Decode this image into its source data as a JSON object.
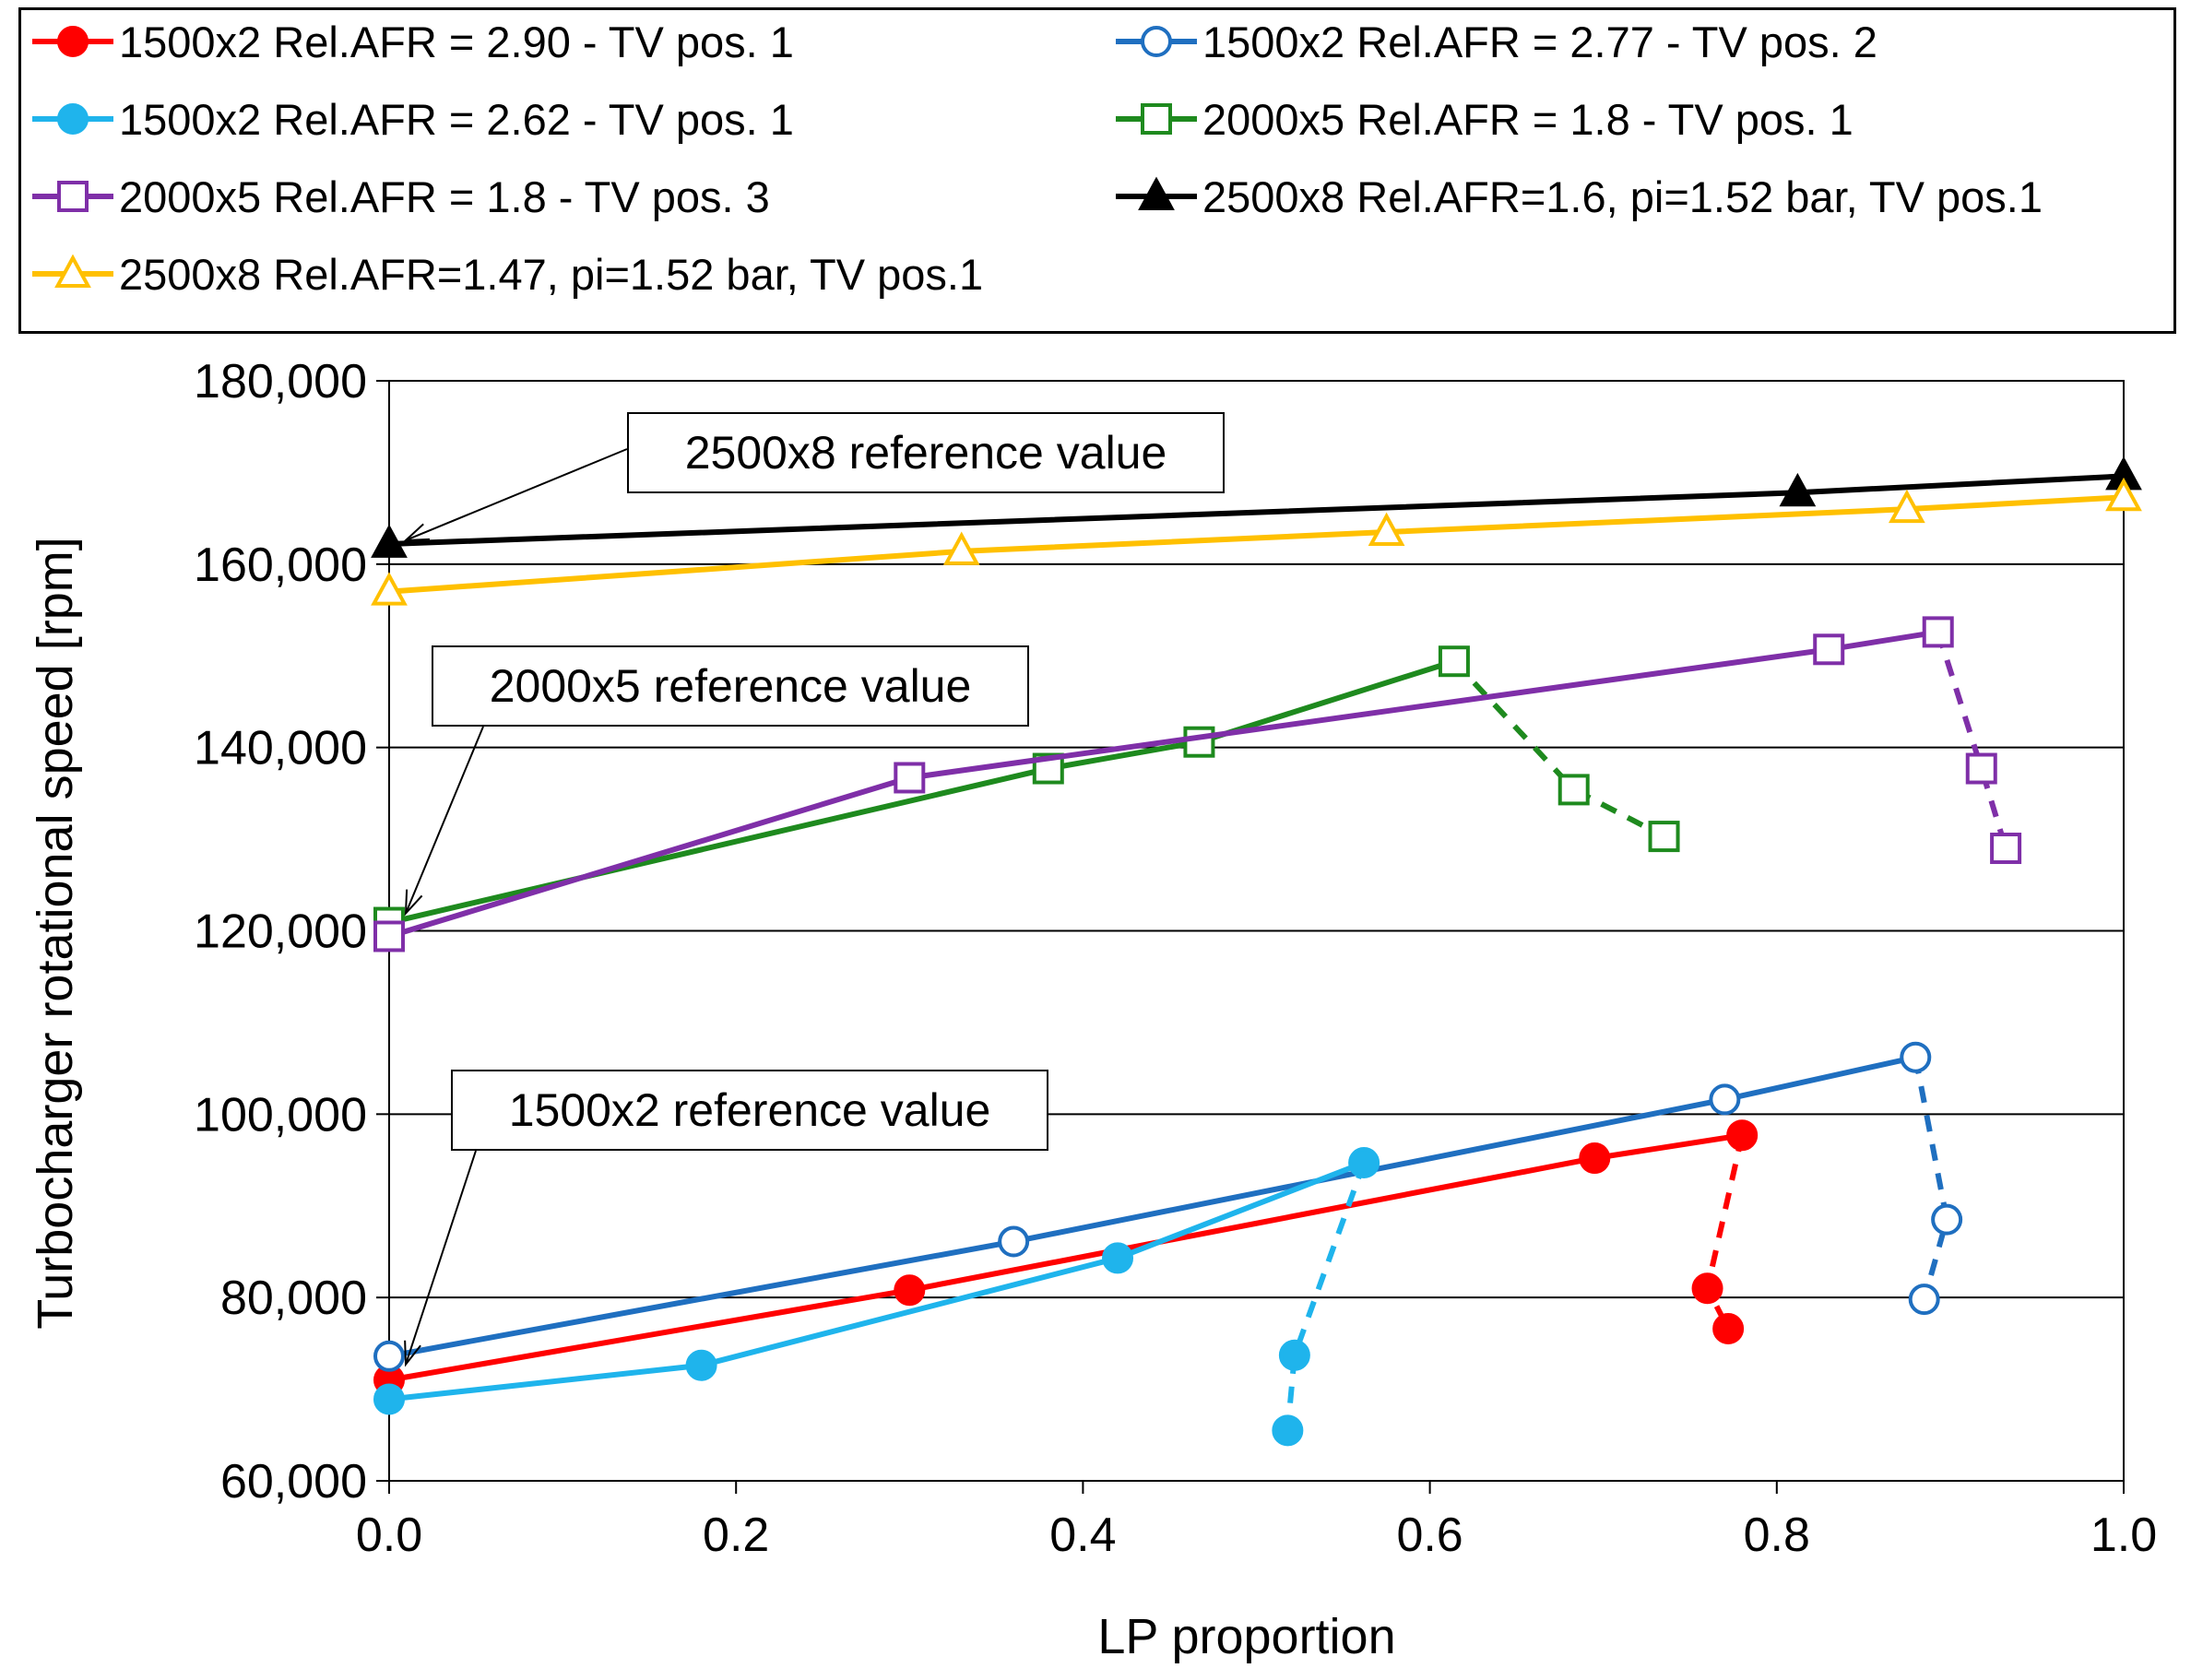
{
  "chart_data": {
    "type": "line",
    "title": "",
    "xlabel": "LP proportion",
    "ylabel": "Turbocharger rotational speed [rpm]",
    "xlim": [
      0.0,
      1.0
    ],
    "ylim": [
      60000,
      180000
    ],
    "x_ticks": [
      "0.0",
      "0.2",
      "0.4",
      "0.6",
      "0.8",
      "1.0"
    ],
    "y_ticks": [
      "60,000",
      "80,000",
      "100,000",
      "120,000",
      "140,000",
      "160,000",
      "180,000"
    ],
    "grid": "horizontal",
    "legend_position": "top",
    "series": [
      {
        "name": "1500x2 Rel.AFR = 2.90 - TV pos. 1",
        "color": "#ff0000",
        "marker": "circle-filled",
        "solid": [
          [
            0.0,
            71000
          ],
          [
            0.3,
            80800
          ],
          [
            0.695,
            95200
          ],
          [
            0.78,
            97700
          ]
        ],
        "dashed": [
          [
            0.78,
            97700
          ],
          [
            0.76,
            81000
          ],
          [
            0.772,
            76600
          ]
        ]
      },
      {
        "name": "1500x2 Rel.AFR = 2.77 - TV pos. 2",
        "color": "#1f6fc0",
        "marker": "circle-open",
        "solid": [
          [
            0.0,
            73600
          ],
          [
            0.36,
            86100
          ],
          [
            0.77,
            101600
          ],
          [
            0.88,
            106200
          ]
        ],
        "dashed": [
          [
            0.88,
            106200
          ],
          [
            0.898,
            88500
          ],
          [
            0.885,
            79800
          ]
        ]
      },
      {
        "name": "1500x2 Rel.AFR = 2.62 - TV pos. 1",
        "color": "#1fb4ec",
        "marker": "circle-filled",
        "solid": [
          [
            0.0,
            68900
          ],
          [
            0.18,
            72600
          ],
          [
            0.42,
            84300
          ],
          [
            0.562,
            94700
          ]
        ],
        "dashed": [
          [
            0.562,
            94700
          ],
          [
            0.522,
            73700
          ],
          [
            0.518,
            65500
          ]
        ]
      },
      {
        "name": "2000x5 Rel.AFR = 1.8 - TV pos. 1",
        "color": "#1e8a1e",
        "marker": "square-open",
        "solid": [
          [
            0.0,
            120900
          ],
          [
            0.38,
            137700
          ],
          [
            0.467,
            140600
          ],
          [
            0.614,
            149400
          ]
        ],
        "dashed": [
          [
            0.614,
            149400
          ],
          [
            0.683,
            135400
          ],
          [
            0.735,
            130300
          ]
        ]
      },
      {
        "name": "2000x5 Rel.AFR = 1.8 - TV pos. 3",
        "color": "#7f2fa8",
        "marker": "square-open",
        "solid": [
          [
            0.0,
            119400
          ],
          [
            0.3,
            136700
          ],
          [
            0.83,
            150700
          ],
          [
            0.893,
            152600
          ]
        ],
        "dashed": [
          [
            0.893,
            152600
          ],
          [
            0.918,
            137700
          ],
          [
            0.932,
            129000
          ]
        ]
      },
      {
        "name": "2500x8 Rel.AFR=1.6, pi=1.52 bar, TV pos.1",
        "color": "#000000",
        "marker": "triangle-filled",
        "solid": [
          [
            0.0,
            162200
          ],
          [
            0.812,
            167800
          ],
          [
            1.0,
            169600
          ]
        ],
        "dashed": []
      },
      {
        "name": "2500x8 Rel.AFR=1.47, pi=1.52 bar, TV pos.1",
        "color": "#ffc000",
        "marker": "triangle-open",
        "solid": [
          [
            0.0,
            157000
          ],
          [
            0.33,
            161400
          ],
          [
            0.575,
            163500
          ],
          [
            0.875,
            166000
          ],
          [
            1.0,
            167300
          ]
        ],
        "dashed": []
      }
    ],
    "annotations": [
      {
        "text": "2500x8 reference value",
        "points_to": [
          0.0,
          162200
        ]
      },
      {
        "text": "2000x5 reference value",
        "points_to": [
          0.0,
          121500
        ]
      },
      {
        "text": "1500x2 reference value",
        "points_to": [
          0.0,
          72300
        ]
      }
    ]
  }
}
